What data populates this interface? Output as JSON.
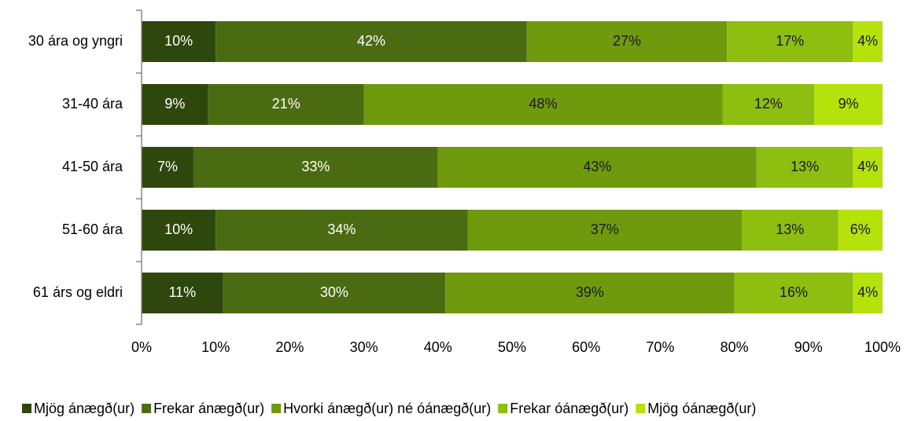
{
  "chart_data": {
    "type": "bar",
    "orientation": "horizontal",
    "stacked": true,
    "categories": [
      "30 ára og yngri",
      "31-40 ára",
      "41-50 ára",
      "51-60 ára",
      "61 árs og eldri"
    ],
    "series": [
      {
        "name": "Mjög ánægð(ur)",
        "color": "#2d470c",
        "values": [
          10,
          9,
          7,
          10,
          11
        ],
        "value_labels": [
          "10%",
          "9%",
          "7%",
          "10%",
          "11%"
        ]
      },
      {
        "name": "Frekar ánægð(ur)",
        "color": "#4b6b12",
        "values": [
          42,
          21,
          33,
          34,
          30
        ],
        "value_labels": [
          "42%",
          "21%",
          "33%",
          "34%",
          "30%"
        ]
      },
      {
        "name": "Hvorki ánægð(ur) né óánægð(ur)",
        "color": "#6f9a0e",
        "values": [
          27,
          48.4,
          43,
          37,
          39
        ],
        "value_labels": [
          "27%",
          "48%",
          "43%",
          "37%",
          "39%"
        ]
      },
      {
        "name": "Frekar óánægð(ur)",
        "color": "#8dbe10",
        "values": [
          17,
          12.4,
          13,
          13,
          16
        ],
        "value_labels": [
          "17%",
          "12%",
          "13%",
          "13%",
          "16%"
        ]
      },
      {
        "name": "Mjög óánægð(ur)",
        "color": "#b4e20a",
        "values": [
          4,
          9.2,
          4,
          6,
          4
        ],
        "value_labels": [
          "4%",
          "9%",
          "4%",
          "6%",
          "4%"
        ]
      }
    ],
    "xlim": [
      0,
      100
    ],
    "xticks": [
      {
        "value": 0,
        "label": "0%"
      },
      {
        "value": 10,
        "label": "10%"
      },
      {
        "value": 20,
        "label": "20%"
      },
      {
        "value": 30,
        "label": "30%"
      },
      {
        "value": 40,
        "label": "40%"
      },
      {
        "value": 50,
        "label": "50%"
      },
      {
        "value": 60,
        "label": "60%"
      },
      {
        "value": 70,
        "label": "70%"
      },
      {
        "value": 80,
        "label": "80%"
      },
      {
        "value": 90,
        "label": "90%"
      },
      {
        "value": 100,
        "label": "100%"
      }
    ],
    "legend": "bottom"
  }
}
